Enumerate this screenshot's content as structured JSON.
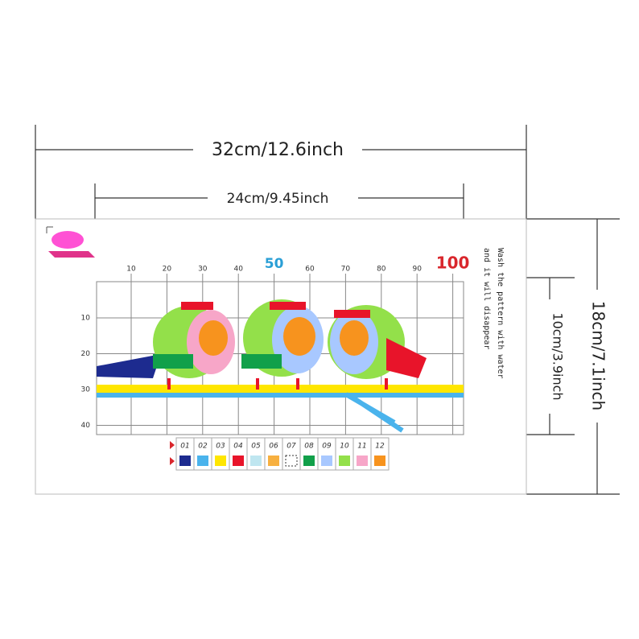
{
  "dimensions": {
    "outer_width": "32cm/12.6inch",
    "inner_width": "24cm/9.45inch",
    "outer_height": "18cm/7.1inch",
    "inner_height": "10cm/3.9inch"
  },
  "pattern": {
    "column_labels": [
      "10",
      "20",
      "30",
      "40",
      "50",
      "60",
      "70",
      "80",
      "90",
      "100"
    ],
    "row_labels": [
      "10",
      "20",
      "30",
      "40"
    ],
    "note": [
      "Wash the pattern with water",
      "and it will disappear"
    ],
    "legend": [
      "01",
      "02",
      "03",
      "04",
      "05",
      "06",
      "07",
      "08",
      "09",
      "10",
      "11",
      "12"
    ]
  }
}
